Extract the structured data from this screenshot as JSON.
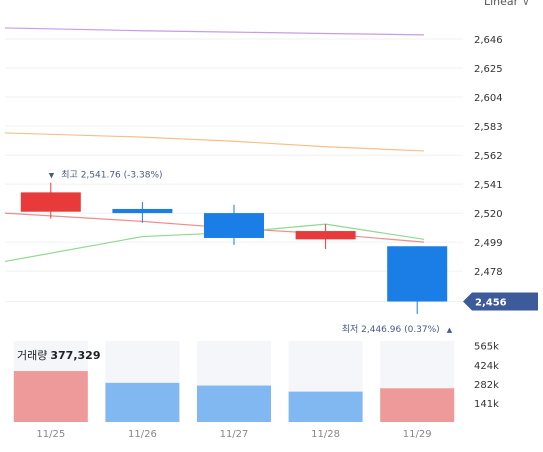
{
  "scale_selector": {
    "label": "Linear"
  },
  "price": {
    "ticks": [
      "2,456",
      "2,478",
      "2,499",
      "2,520",
      "2,541",
      "2,562",
      "2,583",
      "2,604",
      "2,625",
      "2,646"
    ],
    "current_label": "2,456",
    "high_annotation": {
      "marker": "▼",
      "text": "최고 2,541.76 (-3.38%)"
    },
    "low_annotation": {
      "marker": "▲",
      "text": "최저 2,446.96 (0.37%)"
    }
  },
  "volume": {
    "legend_label": "거래량",
    "legend_value": "377,329",
    "ticks": [
      "565k",
      "424k",
      "282k",
      "141k"
    ]
  },
  "colors": {
    "up": "#e83a3a",
    "down": "#1a7ee6",
    "vol_up": "#ef9a9a",
    "vol_down": "#82b8f2",
    "vol_bg": "#f4f6fa",
    "current_tag": "#3d5a9a",
    "ma_purple": "#c89be8",
    "ma_orange": "#f5c08a",
    "ma_red": "#f08c8c",
    "ma_green": "#8fd88f"
  },
  "chart_data": {
    "type": "candlestick",
    "categories": [
      "11/25",
      "11/26",
      "11/27",
      "11/28",
      "11/29"
    ],
    "series": [
      {
        "ohlc": [
          {
            "open": 2521,
            "high": 2542,
            "low": 2516,
            "close": 2535
          },
          {
            "open": 2523,
            "high": 2528,
            "low": 2513,
            "close": 2520
          },
          {
            "open": 2520,
            "high": 2526,
            "low": 2497,
            "close": 2502
          },
          {
            "open": 2501,
            "high": 2512,
            "low": 2494,
            "close": 2507
          },
          {
            "open": 2496,
            "high": 2496,
            "low": 2447,
            "close": 2456
          }
        ]
      },
      {
        "values": [
          2654,
          2652,
          2651,
          2650,
          2649
        ]
      },
      {
        "values": [
          2578,
          2575,
          2572,
          2568,
          2565
        ]
      },
      {
        "values": [
          2520,
          2514,
          2509,
          2505,
          2499
        ]
      },
      {
        "values": [
          2485,
          2503,
          2506,
          2512,
          2501
        ]
      }
    ],
    "volume": [
      {
        "value": 377329,
        "dir": "up"
      },
      {
        "value": 290000,
        "dir": "down"
      },
      {
        "value": 270000,
        "dir": "down"
      },
      {
        "value": 225000,
        "dir": "down"
      },
      {
        "value": 250000,
        "dir": "up"
      }
    ],
    "ylim": [
      2439,
      2667
    ],
    "volume_ylim": [
      0,
      600000
    ]
  }
}
